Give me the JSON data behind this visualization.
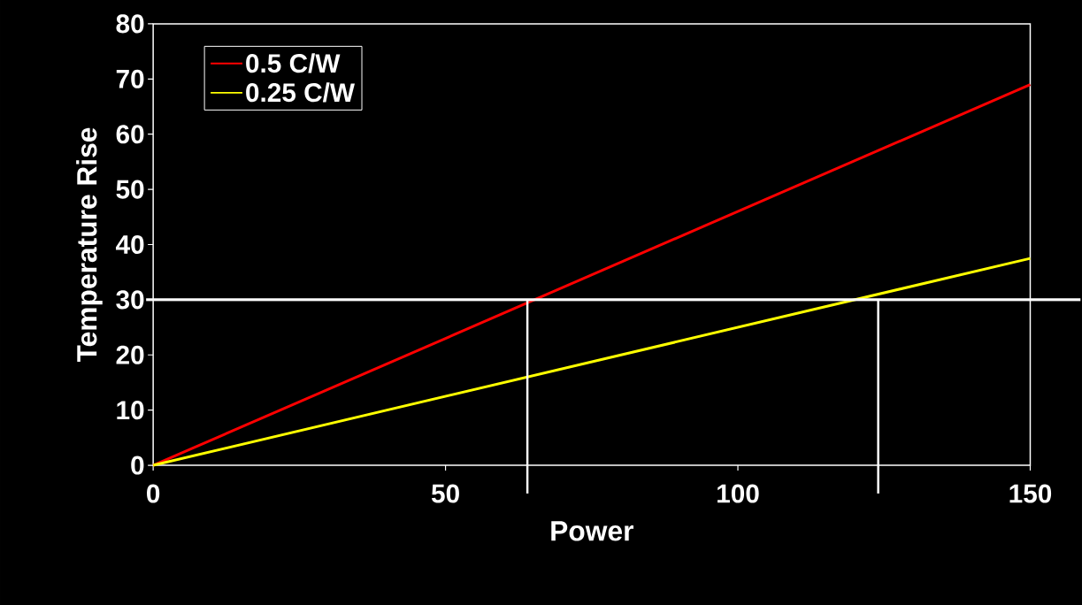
{
  "chart_data": {
    "type": "line",
    "xlabel": "Power",
    "ylabel": "Temperature Rise",
    "x": [
      0,
      150
    ],
    "series": [
      {
        "name": "0.5 C/W",
        "color": "#ff0000",
        "values": [
          0,
          69
        ]
      },
      {
        "name": "0.25 C/W",
        "color": "#ffff00",
        "values": [
          0,
          37.5
        ]
      }
    ],
    "xlim": [
      0,
      150
    ],
    "ylim": [
      0,
      80
    ],
    "xticks": [
      0,
      50,
      100,
      150
    ],
    "yticks": [
      0,
      10,
      20,
      30,
      40,
      50,
      60,
      70,
      80
    ],
    "ref_lines": [
      {
        "axis": "y",
        "value": 30,
        "color": "#ffffff"
      },
      {
        "axis": "x",
        "value": 64,
        "color": "#ffffff"
      },
      {
        "axis": "x",
        "value": 124,
        "color": "#ffffff"
      }
    ],
    "legend": "top left",
    "grid": false,
    "marker": "none",
    "line_style": "solid"
  }
}
